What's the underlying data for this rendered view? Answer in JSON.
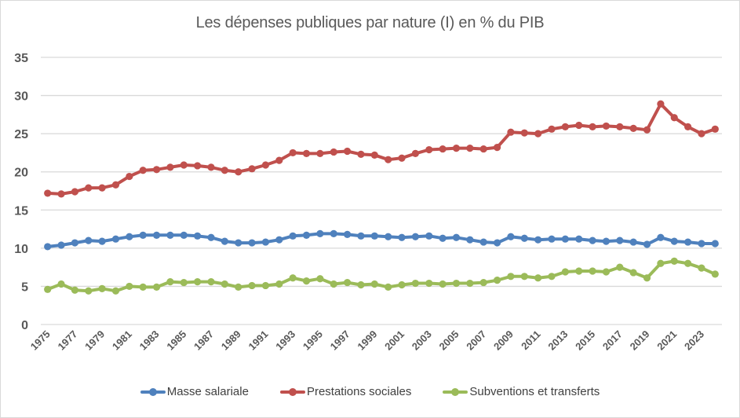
{
  "chart_data": {
    "type": "line",
    "title": "Les dépenses publiques  par nature (I) en % du PIB",
    "xlabel": "",
    "ylabel": "",
    "ylim": [
      0,
      35
    ],
    "yticks": [
      "0",
      "5",
      "10",
      "15",
      "20",
      "25",
      "30",
      "35"
    ],
    "ytick_values": [
      0,
      5,
      10,
      15,
      20,
      25,
      30,
      35
    ],
    "grid": true,
    "legend_position": "bottom",
    "x": [
      1975,
      1976,
      1977,
      1978,
      1979,
      1980,
      1981,
      1982,
      1983,
      1984,
      1985,
      1986,
      1987,
      1988,
      1989,
      1990,
      1991,
      1992,
      1993,
      1994,
      1995,
      1996,
      1997,
      1998,
      1999,
      2000,
      2001,
      2002,
      2003,
      2004,
      2005,
      2006,
      2007,
      2008,
      2009,
      2010,
      2011,
      2012,
      2013,
      2014,
      2015,
      2016,
      2017,
      2018,
      2019,
      2020,
      2021,
      2022,
      2023,
      2024
    ],
    "xtick_labels": [
      "1975",
      "1977",
      "1979",
      "1981",
      "1983",
      "1985",
      "1987",
      "1989",
      "1991",
      "1993",
      "1995",
      "1997",
      "1999",
      "2001",
      "2003",
      "2005",
      "2007",
      "2009",
      "2011",
      "2013",
      "2015",
      "2017",
      "2019",
      "2021",
      "2023"
    ],
    "series": [
      {
        "name": "Masse salariale",
        "color": "#4F81BD",
        "values": [
          10.2,
          10.4,
          10.7,
          11.0,
          10.9,
          11.2,
          11.5,
          11.7,
          11.7,
          11.7,
          11.7,
          11.6,
          11.4,
          10.9,
          10.7,
          10.7,
          10.8,
          11.1,
          11.6,
          11.7,
          11.9,
          11.9,
          11.8,
          11.6,
          11.6,
          11.5,
          11.4,
          11.5,
          11.6,
          11.3,
          11.4,
          11.1,
          10.8,
          10.7,
          11.5,
          11.3,
          11.1,
          11.2,
          11.2,
          11.2,
          11.0,
          10.9,
          11.0,
          10.8,
          10.5,
          11.4,
          10.9,
          10.8,
          10.6,
          10.6
        ]
      },
      {
        "name": "Prestations sociales",
        "color": "#C0504D",
        "values": [
          17.2,
          17.1,
          17.4,
          17.9,
          17.9,
          18.3,
          19.4,
          20.2,
          20.3,
          20.6,
          20.9,
          20.8,
          20.6,
          20.2,
          20.0,
          20.4,
          20.9,
          21.5,
          22.5,
          22.4,
          22.4,
          22.6,
          22.7,
          22.3,
          22.2,
          21.6,
          21.8,
          22.4,
          22.9,
          23.0,
          23.1,
          23.1,
          23.0,
          23.2,
          25.2,
          25.1,
          25.0,
          25.6,
          25.9,
          26.1,
          25.9,
          26.0,
          25.9,
          25.7,
          25.5,
          28.9,
          27.1,
          25.9,
          25.0,
          25.6
        ]
      },
      {
        "name": "Subventions et transferts",
        "color": "#9BBB59",
        "values": [
          4.6,
          5.3,
          4.5,
          4.4,
          4.7,
          4.4,
          5.0,
          4.9,
          4.9,
          5.6,
          5.5,
          5.6,
          5.6,
          5.3,
          4.9,
          5.1,
          5.1,
          5.3,
          6.1,
          5.7,
          6.0,
          5.3,
          5.5,
          5.2,
          5.3,
          4.9,
          5.2,
          5.4,
          5.4,
          5.3,
          5.4,
          5.4,
          5.5,
          5.8,
          6.3,
          6.3,
          6.1,
          6.3,
          6.9,
          7.0,
          7.0,
          6.9,
          7.5,
          6.8,
          6.1,
          8.0,
          8.3,
          8.0,
          7.4,
          6.6
        ]
      }
    ]
  }
}
